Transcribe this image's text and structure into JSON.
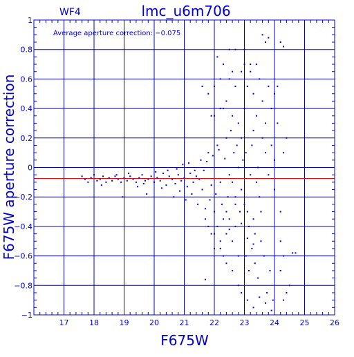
{
  "chart_data": {
    "type": "scatter",
    "title": "lmc_u6m706",
    "chip_label": "WF4",
    "annotation": "Average aperture correction: −0.075",
    "xlabel": "F675W",
    "ylabel": "F675W aperture correction",
    "xlim": [
      16,
      26
    ],
    "ylim": [
      -1,
      1
    ],
    "xticks": [
      17,
      18,
      19,
      20,
      21,
      22,
      23,
      24,
      25,
      26
    ],
    "yticks": [
      -1,
      -0.8,
      -0.6,
      -0.4,
      -0.2,
      0,
      0.2,
      0.4,
      0.6,
      0.8,
      1
    ],
    "ytick_labels": [
      "−1",
      "−0.8",
      "−0.6",
      "−0.4",
      "−0.2",
      "0",
      "0.2",
      "0.4",
      "0.6",
      "0.8",
      "1"
    ],
    "grid": true,
    "reference_line": {
      "y": -0.075,
      "color": "#ff0000"
    },
    "colors": {
      "axes": "#0000cc",
      "points": "#0000cc",
      "reference": "#ff0000"
    },
    "series": [
      {
        "points": [
          [
            17.6,
            -0.06
          ],
          [
            17.7,
            -0.08
          ],
          [
            17.8,
            -0.1
          ],
          [
            17.9,
            -0.07
          ],
          [
            18.0,
            -0.05
          ],
          [
            18.1,
            -0.09
          ],
          [
            18.2,
            -0.08
          ],
          [
            18.3,
            -0.06
          ],
          [
            18.4,
            -0.1
          ],
          [
            18.5,
            -0.07
          ],
          [
            18.6,
            -0.09
          ],
          [
            18.7,
            -0.06
          ],
          [
            18.8,
            -0.08
          ],
          [
            18.9,
            -0.1
          ],
          [
            19.0,
            -0.07
          ],
          [
            19.1,
            -0.09
          ],
          [
            19.2,
            -0.06
          ],
          [
            19.3,
            -0.08
          ],
          [
            19.4,
            -0.1
          ],
          [
            19.5,
            -0.07
          ],
          [
            19.6,
            -0.05
          ],
          [
            19.7,
            -0.09
          ],
          [
            19.8,
            -0.08
          ],
          [
            19.9,
            -0.06
          ],
          [
            20.0,
            -0.1
          ],
          [
            20.1,
            -0.07
          ],
          [
            20.2,
            -0.09
          ],
          [
            20.3,
            -0.04
          ],
          [
            20.4,
            -0.12
          ],
          [
            20.5,
            -0.06
          ],
          [
            18.25,
            -0.12
          ],
          [
            18.75,
            -0.05
          ],
          [
            18.95,
            -0.2
          ],
          [
            19.15,
            -0.04
          ],
          [
            19.45,
            -0.13
          ],
          [
            19.65,
            -0.11
          ],
          [
            19.75,
            -0.18
          ],
          [
            20.05,
            -0.03
          ],
          [
            20.25,
            -0.14
          ],
          [
            20.45,
            -0.02
          ],
          [
            20.6,
            -0.08
          ],
          [
            20.7,
            -0.11
          ],
          [
            20.8,
            -0.05
          ],
          [
            20.9,
            -0.09
          ],
          [
            21.0,
            -0.07
          ],
          [
            21.1,
            -0.13
          ],
          [
            21.2,
            -0.04
          ],
          [
            21.3,
            -0.1
          ],
          [
            21.4,
            -0.06
          ],
          [
            21.5,
            -0.08
          ],
          [
            20.65,
            -0.2
          ],
          [
            20.75,
            -0.01
          ],
          [
            20.85,
            -0.16
          ],
          [
            20.95,
            0.02
          ],
          [
            21.05,
            -0.22
          ],
          [
            21.15,
            0.03
          ],
          [
            21.25,
            -0.18
          ],
          [
            21.35,
            -0.02
          ],
          [
            21.45,
            -0.25
          ],
          [
            21.55,
            0.05
          ],
          [
            21.6,
            -0.15
          ],
          [
            21.7,
            -0.28
          ],
          [
            21.8,
            0.1
          ],
          [
            21.9,
            -0.12
          ],
          [
            22.0,
            -0.3
          ],
          [
            22.1,
            0.15
          ],
          [
            22.2,
            -0.1
          ],
          [
            22.3,
            -0.35
          ],
          [
            22.4,
            0.2
          ],
          [
            22.5,
            -0.05
          ],
          [
            21.65,
            -0.02
          ],
          [
            21.75,
            0.04
          ],
          [
            21.85,
            -0.22
          ],
          [
            21.95,
            0.08
          ],
          [
            22.05,
            -0.18
          ],
          [
            22.15,
            0.12
          ],
          [
            22.25,
            -0.25
          ],
          [
            22.35,
            0.06
          ],
          [
            22.45,
            -0.2
          ],
          [
            22.55,
            0.25
          ],
          [
            21.6,
            0.55
          ],
          [
            21.8,
            0.5
          ],
          [
            22.0,
            0.35
          ],
          [
            22.1,
            0.75
          ],
          [
            22.2,
            0.6
          ],
          [
            22.3,
            0.4
          ],
          [
            22.4,
            0.45
          ],
          [
            22.5,
            0.6
          ],
          [
            22.6,
            0.35
          ],
          [
            22.7,
            0.55
          ],
          [
            21.9,
            -0.45
          ],
          [
            22.0,
            -0.55
          ],
          [
            22.1,
            -0.4
          ],
          [
            22.2,
            -0.5
          ],
          [
            22.3,
            -0.6
          ],
          [
            22.4,
            -0.45
          ],
          [
            22.5,
            -0.35
          ],
          [
            22.6,
            -0.5
          ],
          [
            22.7,
            -0.4
          ],
          [
            22.8,
            -0.6
          ],
          [
            21.7,
            -0.76
          ],
          [
            22.4,
            -0.65
          ],
          [
            22.6,
            -0.7
          ],
          [
            22.8,
            -0.8
          ],
          [
            22.9,
            -0.85
          ],
          [
            22.7,
            0.8
          ],
          [
            22.9,
            0.65
          ],
          [
            23.0,
            0.7
          ],
          [
            22.8,
            0.3
          ],
          [
            22.9,
            0.2
          ],
          [
            22.6,
            -0.1
          ],
          [
            22.7,
            -0.2
          ],
          [
            22.8,
            0.0
          ],
          [
            22.9,
            -0.15
          ],
          [
            23.0,
            -0.25
          ],
          [
            23.1,
            -0.3
          ],
          [
            23.2,
            -0.05
          ],
          [
            23.3,
            -0.35
          ],
          [
            23.4,
            -0.1
          ],
          [
            23.5,
            -0.2
          ],
          [
            22.65,
            0.1
          ],
          [
            22.75,
            0.15
          ],
          [
            22.85,
            -0.3
          ],
          [
            22.95,
            0.05
          ],
          [
            23.05,
            0.1
          ],
          [
            23.15,
            -0.4
          ],
          [
            23.25,
            0.15
          ],
          [
            23.35,
            -0.45
          ],
          [
            23.45,
            0.0
          ],
          [
            23.55,
            -0.3
          ],
          [
            23.0,
            0.4
          ],
          [
            23.1,
            0.55
          ],
          [
            23.2,
            0.65
          ],
          [
            23.3,
            0.5
          ],
          [
            23.4,
            0.35
          ],
          [
            23.5,
            0.6
          ],
          [
            23.6,
            0.45
          ],
          [
            23.7,
            0.3
          ],
          [
            23.8,
            0.55
          ],
          [
            23.9,
            0.4
          ],
          [
            23.05,
            -0.6
          ],
          [
            23.15,
            -0.7
          ],
          [
            23.25,
            -0.55
          ],
          [
            23.35,
            -0.65
          ],
          [
            23.45,
            -0.75
          ],
          [
            23.55,
            -0.5
          ],
          [
            23.65,
            -0.6
          ],
          [
            23.75,
            -0.85
          ],
          [
            23.85,
            -0.7
          ],
          [
            23.95,
            -0.9
          ],
          [
            23.1,
            -0.9
          ],
          [
            23.3,
            -0.95
          ],
          [
            23.5,
            -0.88
          ],
          [
            23.7,
            -0.92
          ],
          [
            23.9,
            -0.97
          ],
          [
            23.6,
            0.9
          ],
          [
            23.8,
            0.88
          ],
          [
            23.7,
            0.85
          ],
          [
            24.2,
            0.85
          ],
          [
            24.3,
            0.82
          ],
          [
            23.6,
            0.2
          ],
          [
            23.7,
            0.1
          ],
          [
            23.8,
            -0.05
          ],
          [
            23.9,
            0.15
          ],
          [
            24.0,
            -0.15
          ],
          [
            24.1,
            0.3
          ],
          [
            24.2,
            -0.3
          ],
          [
            24.3,
            0.1
          ],
          [
            24.4,
            0.2
          ],
          [
            24.2,
            -0.5
          ],
          [
            24.0,
            0.5
          ],
          [
            24.1,
            0.55
          ],
          [
            24.0,
            0.05
          ],
          [
            24.2,
            -0.7
          ],
          [
            24.3,
            -0.6
          ],
          [
            24.6,
            -0.58
          ],
          [
            24.7,
            -0.58
          ],
          [
            24.5,
            -0.8
          ],
          [
            24.4,
            -0.85
          ],
          [
            24.3,
            -0.9
          ],
          [
            22.3,
            0.7
          ],
          [
            22.2,
            0.4
          ],
          [
            22.5,
            0.8
          ],
          [
            23.0,
            0.8
          ],
          [
            23.2,
            0.7
          ],
          [
            23.4,
            0.7
          ],
          [
            22.0,
            0.55
          ],
          [
            21.9,
            0.35
          ],
          [
            22.6,
            0.65
          ],
          [
            23.3,
            0.25
          ],
          [
            21.7,
            -0.35
          ],
          [
            21.8,
            -0.4
          ],
          [
            22.0,
            -0.45
          ],
          [
            22.2,
            -0.55
          ],
          [
            22.4,
            -0.3
          ],
          [
            22.5,
            -0.42
          ],
          [
            22.7,
            -0.25
          ],
          [
            22.9,
            -0.38
          ],
          [
            23.1,
            -0.48
          ],
          [
            23.3,
            -0.52
          ]
        ]
      }
    ]
  }
}
